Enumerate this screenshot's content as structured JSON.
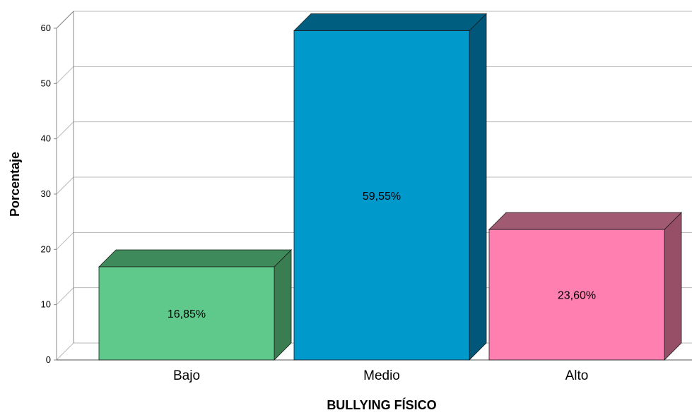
{
  "chart_data": {
    "type": "bar",
    "style": "3d",
    "title": "",
    "xlabel": "BULLYING FÍSICO",
    "ylabel": "Porcentaje",
    "categories": [
      "Bajo",
      "Medio",
      "Alto"
    ],
    "values": [
      16.85,
      59.55,
      23.6
    ],
    "data_labels": [
      "16,85%",
      "59,55%",
      "23,60%"
    ],
    "ylim": [
      0,
      60
    ],
    "yticks": [
      0,
      10,
      20,
      30,
      40,
      50,
      60
    ],
    "grid": true,
    "legend": "none",
    "colors": {
      "Bajo": {
        "front": "#5ec98b",
        "top": "#3e8a5a",
        "side": "#3a7d51"
      },
      "Medio": {
        "front": "#0099cc",
        "top": "#005f80",
        "side": "#00577a"
      },
      "Alto": {
        "front": "#ff80b0",
        "top": "#a05a72",
        "side": "#974f68"
      }
    },
    "wall_color": "#ffffff",
    "grid_color": "#b8b8b8"
  }
}
